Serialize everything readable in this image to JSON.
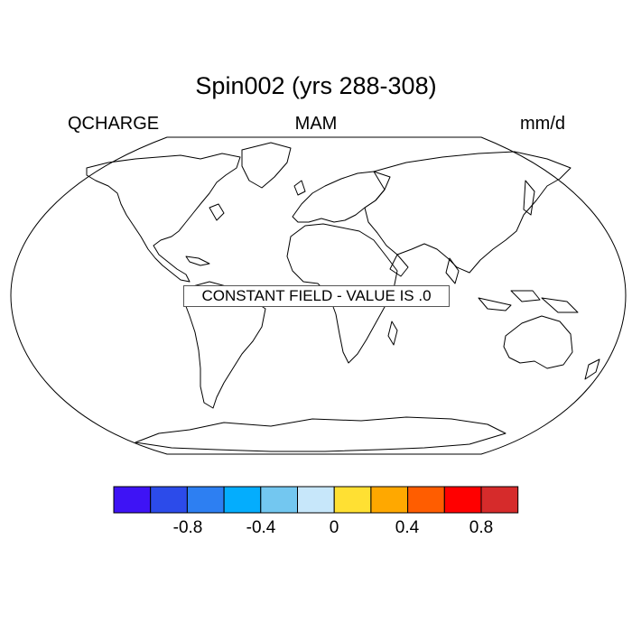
{
  "title": "Spin002 (yrs 288-308)",
  "left_label": "QCHARGE",
  "center_label": "MAM",
  "right_label": "mm/d",
  "constant_field_text": "CONSTANT FIELD - VALUE IS .0",
  "colorbar": {
    "colors": [
      "#3e13f5",
      "#2c4bea",
      "#2d7ff2",
      "#04adfd",
      "#73c7f0",
      "#c7e7fa",
      "#ffe033",
      "#ffa800",
      "#ff5d00",
      "#ff0000",
      "#d62b2b"
    ],
    "tick_labels": [
      "-0.8",
      "-0.4",
      "0",
      "0.4",
      "0.8"
    ]
  }
}
